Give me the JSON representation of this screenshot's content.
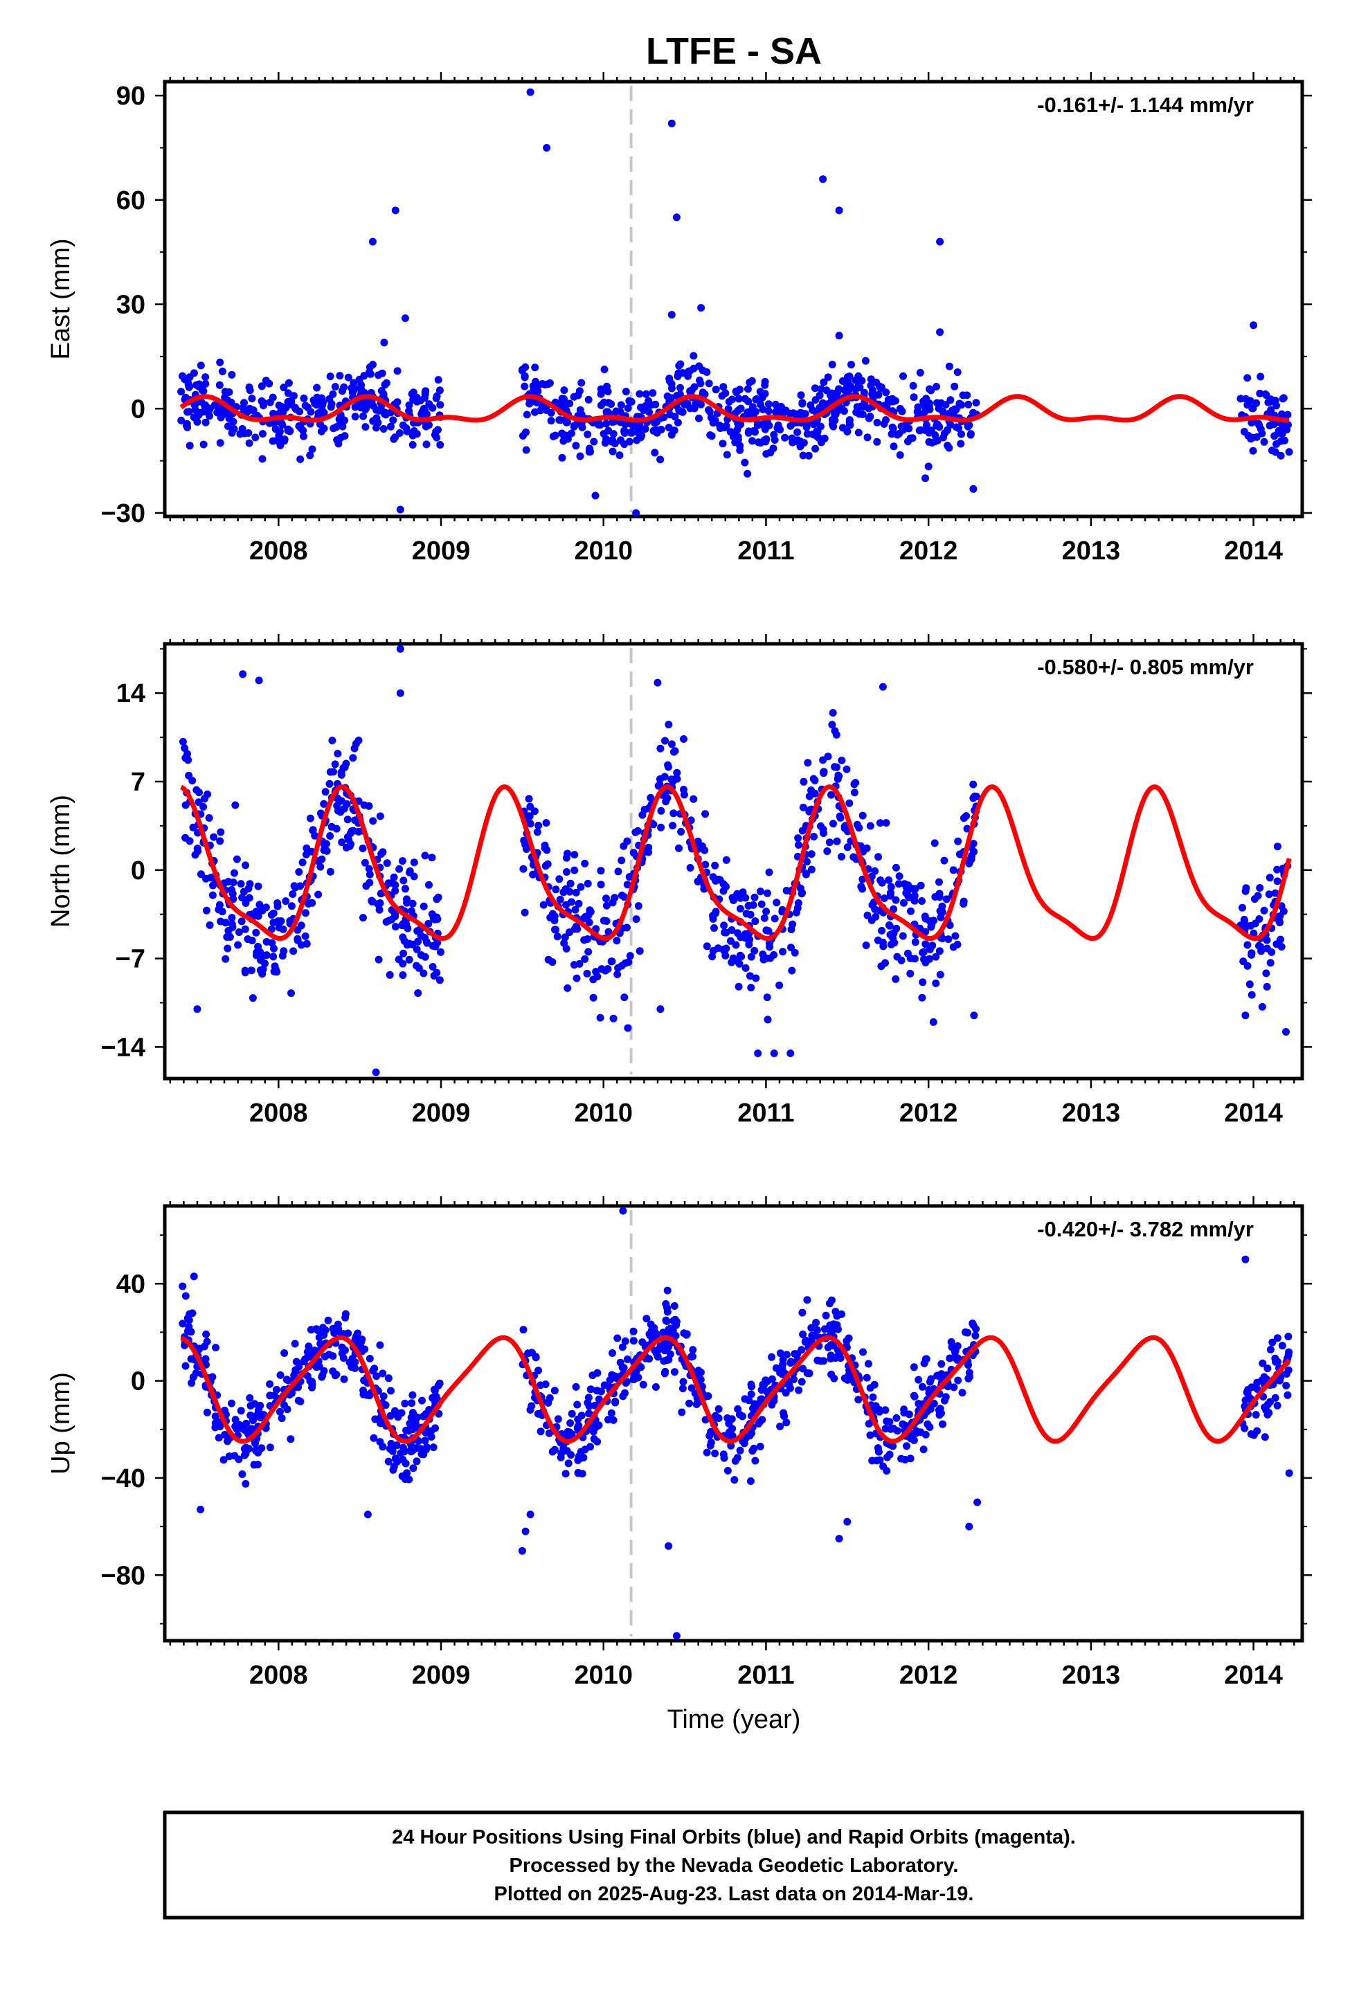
{
  "title": "LTFE - SA",
  "colors": {
    "final_points": "#0000ff",
    "model_line": "#ff0000",
    "event_line": "#c8c8c8",
    "frame": "#000000"
  },
  "x_axis": {
    "label": "Time (year)"
  },
  "footer": {
    "line1": "24 Hour Positions Using Final Orbits (blue) and Rapid Orbits (magenta).",
    "line2": "Processed by the Nevada Geodetic Laboratory.",
    "line3": "Plotted on 2025-Aug-23. Last data on 2014-Mar-19."
  },
  "chart_data": [
    {
      "type": "scatter",
      "component": "east",
      "ylabel": "East (mm)",
      "velocity": "-0.161+/- 1.144 mm/yr",
      "xlim": [
        2007.3,
        2014.3
      ],
      "ylim": [
        -31,
        94
      ],
      "yticks": [
        90,
        60,
        30,
        0,
        -30
      ],
      "ytick_labels": [
        "90",
        "60",
        "30",
        "0",
        "−30"
      ],
      "xticks": [
        2008,
        2009,
        2010,
        2011,
        2012,
        2013,
        2014
      ],
      "event_x": 2010.17,
      "data_span": [
        2007.4,
        2014.22
      ],
      "gaps": [
        [
          2009.0,
          2009.5
        ],
        [
          2012.3,
          2013.92
        ]
      ],
      "model": {
        "amp_annual": 3.0,
        "phase_annual": 4.4,
        "amp_semiannual": 1.5,
        "phase_semiannual": 1.0,
        "offset": -1.0
      },
      "scatter": {
        "sigma": 5.0,
        "density": 220
      },
      "outliers": [
        [
          2008.58,
          48
        ],
        [
          2008.72,
          57
        ],
        [
          2008.65,
          19
        ],
        [
          2008.78,
          26
        ],
        [
          2008.75,
          -29
        ],
        [
          2009.55,
          91
        ],
        [
          2009.65,
          75
        ],
        [
          2009.95,
          -25
        ],
        [
          2010.2,
          -30
        ],
        [
          2010.42,
          82
        ],
        [
          2010.45,
          55
        ],
        [
          2010.42,
          27
        ],
        [
          2010.6,
          29
        ],
        [
          2011.35,
          66
        ],
        [
          2011.45,
          57
        ],
        [
          2011.45,
          21
        ],
        [
          2012.07,
          48
        ],
        [
          2012.07,
          22
        ],
        [
          2011.98,
          -20
        ],
        [
          2014.0,
          24
        ]
      ],
      "series": [
        {
          "name": "Final Orbits"
        }
      ]
    },
    {
      "type": "scatter",
      "component": "north",
      "ylabel": "North (mm)",
      "velocity": "-0.580+/- 0.805 mm/yr",
      "xlim": [
        2007.3,
        2014.3
      ],
      "ylim": [
        -16.5,
        17.9
      ],
      "yticks": [
        14,
        7,
        0,
        -7,
        -14
      ],
      "ytick_labels": [
        "14",
        "7",
        "0",
        "−7",
        "−14"
      ],
      "xticks": [
        2008,
        2009,
        2010,
        2011,
        2012,
        2013,
        2014
      ],
      "event_x": 2010.17,
      "data_span": [
        2007.4,
        2014.22
      ],
      "gaps": [
        [
          2009.0,
          2009.5
        ],
        [
          2012.3,
          2013.92
        ]
      ],
      "model": {
        "amp_annual": 5.6,
        "phase_annual": 5.25,
        "amp_semiannual": 1.6,
        "phase_semiannual": 3.2,
        "offset": -0.5
      },
      "scatter": {
        "sigma": 2.4,
        "density": 220
      },
      "outliers": [
        [
          2007.78,
          15.5
        ],
        [
          2007.88,
          15.0
        ],
        [
          2008.6,
          -16.0
        ],
        [
          2008.75,
          17.5
        ],
        [
          2008.75,
          14.0
        ],
        [
          2008.95,
          -6.0
        ],
        [
          2010.15,
          -12.5
        ],
        [
          2010.35,
          -11.0
        ],
        [
          2010.95,
          -14.5
        ],
        [
          2011.05,
          -14.5
        ],
        [
          2011.15,
          -14.5
        ],
        [
          2011.72,
          14.5
        ],
        [
          2012.28,
          -11.5
        ],
        [
          2013.95,
          -11.5
        ],
        [
          2014.2,
          -12.8
        ],
        [
          2007.5,
          -11.0
        ]
      ],
      "series": [
        {
          "name": "Final Orbits"
        }
      ]
    },
    {
      "type": "scatter",
      "component": "up",
      "ylabel": "Up (mm)",
      "velocity": "-0.420+/- 3.782 mm/yr",
      "xlim": [
        2007.3,
        2014.3
      ],
      "ylim": [
        -107,
        72
      ],
      "yticks": [
        40,
        0,
        -40,
        -80
      ],
      "ytick_labels": [
        "40",
        "0",
        "−40",
        "−80"
      ],
      "xticks": [
        2008,
        2009,
        2010,
        2011,
        2012,
        2013,
        2014
      ],
      "event_x": 2010.17,
      "data_span": [
        2007.4,
        2014.22
      ],
      "gaps": [
        [
          2009.0,
          2009.5
        ],
        [
          2012.3,
          2013.92
        ]
      ],
      "model": {
        "amp_annual": 20.0,
        "phase_annual": 5.8,
        "amp_semiannual": 4.0,
        "phase_semiannual": 2.0,
        "offset": -3.0
      },
      "scatter": {
        "sigma": 8.0,
        "density": 220
      },
      "outliers": [
        [
          2008.55,
          -55
        ],
        [
          2009.5,
          -70
        ],
        [
          2009.52,
          -62
        ],
        [
          2009.55,
          -55
        ],
        [
          2010.12,
          70
        ],
        [
          2010.4,
          -68
        ],
        [
          2010.45,
          -105
        ],
        [
          2012.25,
          -60
        ],
        [
          2012.3,
          -50
        ],
        [
          2013.95,
          50
        ],
        [
          2007.52,
          -53
        ],
        [
          2007.48,
          43
        ],
        [
          2014.22,
          -38
        ],
        [
          2011.45,
          -65
        ],
        [
          2011.5,
          -58
        ]
      ],
      "series": [
        {
          "name": "Final Orbits"
        }
      ]
    }
  ]
}
